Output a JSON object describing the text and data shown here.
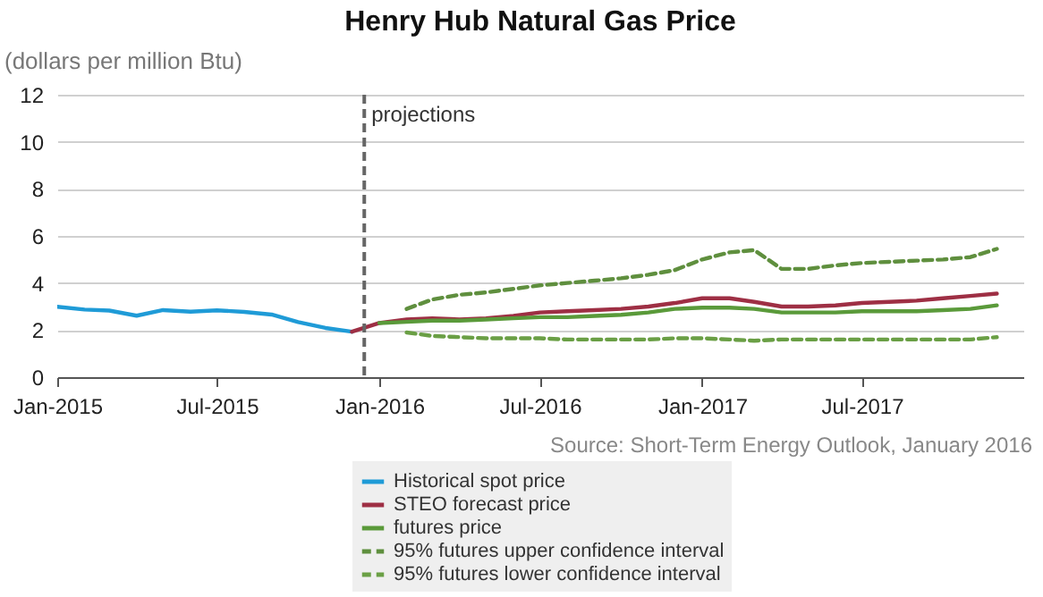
{
  "chart_data": {
    "type": "line",
    "title": "Henry Hub Natural Gas Price",
    "ylabel": "(dollars per million Btu)",
    "annotations": [
      "Source: Short-Term Energy Outlook, January 2016"
    ],
    "xlim": [
      "2015-01-01",
      "2017-12-31"
    ],
    "xticks": [
      {
        "value": "2015-01-01",
        "label": "Jan-2015"
      },
      {
        "value": "2015-07-01",
        "label": "Jul-2015"
      },
      {
        "value": "2016-01-01",
        "label": "Jan-2016"
      },
      {
        "value": "2016-07-01",
        "label": "Jul-2016"
      },
      {
        "value": "2017-01-01",
        "label": "Jan-2017"
      },
      {
        "value": "2017-07-01",
        "label": "Jul-2017"
      }
    ],
    "ylim": [
      0,
      12
    ],
    "yticks": [
      0,
      2,
      4,
      6,
      8,
      10,
      12
    ],
    "grid": "y",
    "legend": "bottom",
    "ref_lines": [
      {
        "axis": "x",
        "value": "2015-12-15",
        "label": "projections",
        "color": "#666666",
        "line_style": "dashed"
      }
    ],
    "series": [
      {
        "name": "Historical spot price",
        "color": "#1f9bd7",
        "line_style": "solid",
        "x": [
          "2015-01-01",
          "2015-02-01",
          "2015-03-01",
          "2015-04-01",
          "2015-05-01",
          "2015-06-01",
          "2015-07-01",
          "2015-08-01",
          "2015-09-01",
          "2015-10-01",
          "2015-11-01",
          "2015-12-01"
        ],
        "values": [
          2.99,
          2.87,
          2.83,
          2.61,
          2.85,
          2.78,
          2.84,
          2.77,
          2.66,
          2.34,
          2.09,
          1.93
        ]
      },
      {
        "name": "STEO forecast price",
        "color": "#9e2f44",
        "line_style": "solid",
        "x": [
          "2015-12-01",
          "2016-01-01",
          "2016-02-01",
          "2016-03-01",
          "2016-04-01",
          "2016-05-01",
          "2016-06-01",
          "2016-07-01",
          "2016-08-01",
          "2016-09-01",
          "2016-10-01",
          "2016-11-01",
          "2016-12-01",
          "2017-01-01",
          "2017-02-01",
          "2017-03-01",
          "2017-04-01",
          "2017-05-01",
          "2017-06-01",
          "2017-07-01",
          "2017-08-01",
          "2017-09-01",
          "2017-10-01",
          "2017-11-01",
          "2017-12-01"
        ],
        "values": [
          1.93,
          2.3,
          2.45,
          2.5,
          2.45,
          2.5,
          2.6,
          2.75,
          2.8,
          2.85,
          2.9,
          3.0,
          3.15,
          3.35,
          3.35,
          3.2,
          3.0,
          3.0,
          3.05,
          3.15,
          3.2,
          3.25,
          3.35,
          3.45,
          3.55
        ]
      },
      {
        "name": "futures price",
        "color": "#5a9a3a",
        "line_style": "solid",
        "x": [
          "2016-01-01",
          "2016-02-01",
          "2016-03-01",
          "2016-04-01",
          "2016-05-01",
          "2016-06-01",
          "2016-07-01",
          "2016-08-01",
          "2016-09-01",
          "2016-10-01",
          "2016-11-01",
          "2016-12-01",
          "2017-01-01",
          "2017-02-01",
          "2017-03-01",
          "2017-04-01",
          "2017-05-01",
          "2017-06-01",
          "2017-07-01",
          "2017-08-01",
          "2017-09-01",
          "2017-10-01",
          "2017-11-01",
          "2017-12-01"
        ],
        "values": [
          2.3,
          2.35,
          2.4,
          2.4,
          2.45,
          2.5,
          2.55,
          2.55,
          2.6,
          2.65,
          2.75,
          2.9,
          2.95,
          2.95,
          2.9,
          2.75,
          2.75,
          2.75,
          2.8,
          2.8,
          2.8,
          2.85,
          2.9,
          3.05
        ]
      },
      {
        "name": "95% futures upper confidence interval",
        "color": "#5f8f3e",
        "line_style": "dashed",
        "x": [
          "2016-02-01",
          "2016-03-01",
          "2016-04-01",
          "2016-05-01",
          "2016-06-01",
          "2016-07-01",
          "2016-08-01",
          "2016-09-01",
          "2016-10-01",
          "2016-11-01",
          "2016-12-01",
          "2017-01-01",
          "2017-02-01",
          "2017-03-01",
          "2017-04-01",
          "2017-05-01",
          "2017-06-01",
          "2017-07-01",
          "2017-08-01",
          "2017-09-01",
          "2017-10-01",
          "2017-11-01",
          "2017-12-01"
        ],
        "values": [
          2.9,
          3.3,
          3.5,
          3.6,
          3.75,
          3.9,
          4.0,
          4.1,
          4.2,
          4.35,
          4.55,
          5.0,
          5.3,
          5.4,
          4.6,
          4.6,
          4.75,
          4.85,
          4.9,
          4.95,
          5.0,
          5.1,
          5.45
        ]
      },
      {
        "name": "95% futures lower confidence interval",
        "color": "#6a9f45",
        "line_style": "dashed",
        "x": [
          "2016-02-01",
          "2016-03-01",
          "2016-04-01",
          "2016-05-01",
          "2016-06-01",
          "2016-07-01",
          "2016-08-01",
          "2016-09-01",
          "2016-10-01",
          "2016-11-01",
          "2016-12-01",
          "2017-01-01",
          "2017-02-01",
          "2017-03-01",
          "2017-04-01",
          "2017-05-01",
          "2017-06-01",
          "2017-07-01",
          "2017-08-01",
          "2017-09-01",
          "2017-10-01",
          "2017-11-01",
          "2017-12-01"
        ],
        "values": [
          1.9,
          1.75,
          1.7,
          1.65,
          1.65,
          1.65,
          1.6,
          1.6,
          1.6,
          1.6,
          1.65,
          1.65,
          1.6,
          1.55,
          1.6,
          1.6,
          1.6,
          1.6,
          1.6,
          1.6,
          1.6,
          1.6,
          1.7
        ]
      }
    ]
  }
}
